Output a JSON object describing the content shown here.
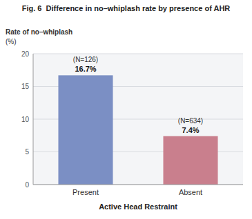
{
  "chart_data": {
    "type": "bar",
    "title": "Fig. 6  Difference in no–whiplash rate by presence of AHR",
    "ylabel": "Rate of no–whiplash",
    "ylabel_unit": "(%)",
    "xlabel": "Active Head Restraint",
    "categories": [
      "Present",
      "Absent"
    ],
    "values": [
      16.7,
      7.4
    ],
    "value_labels": [
      "16.7%",
      "7.4%"
    ],
    "annotations": [
      "(N=126)",
      "(N=634)"
    ],
    "colors": [
      "#7b8fc4",
      "#c97f8d"
    ],
    "ylim": [
      0,
      20
    ],
    "yticks": [
      0,
      5,
      10,
      15,
      20
    ],
    "grid": true,
    "data_labels": true
  }
}
